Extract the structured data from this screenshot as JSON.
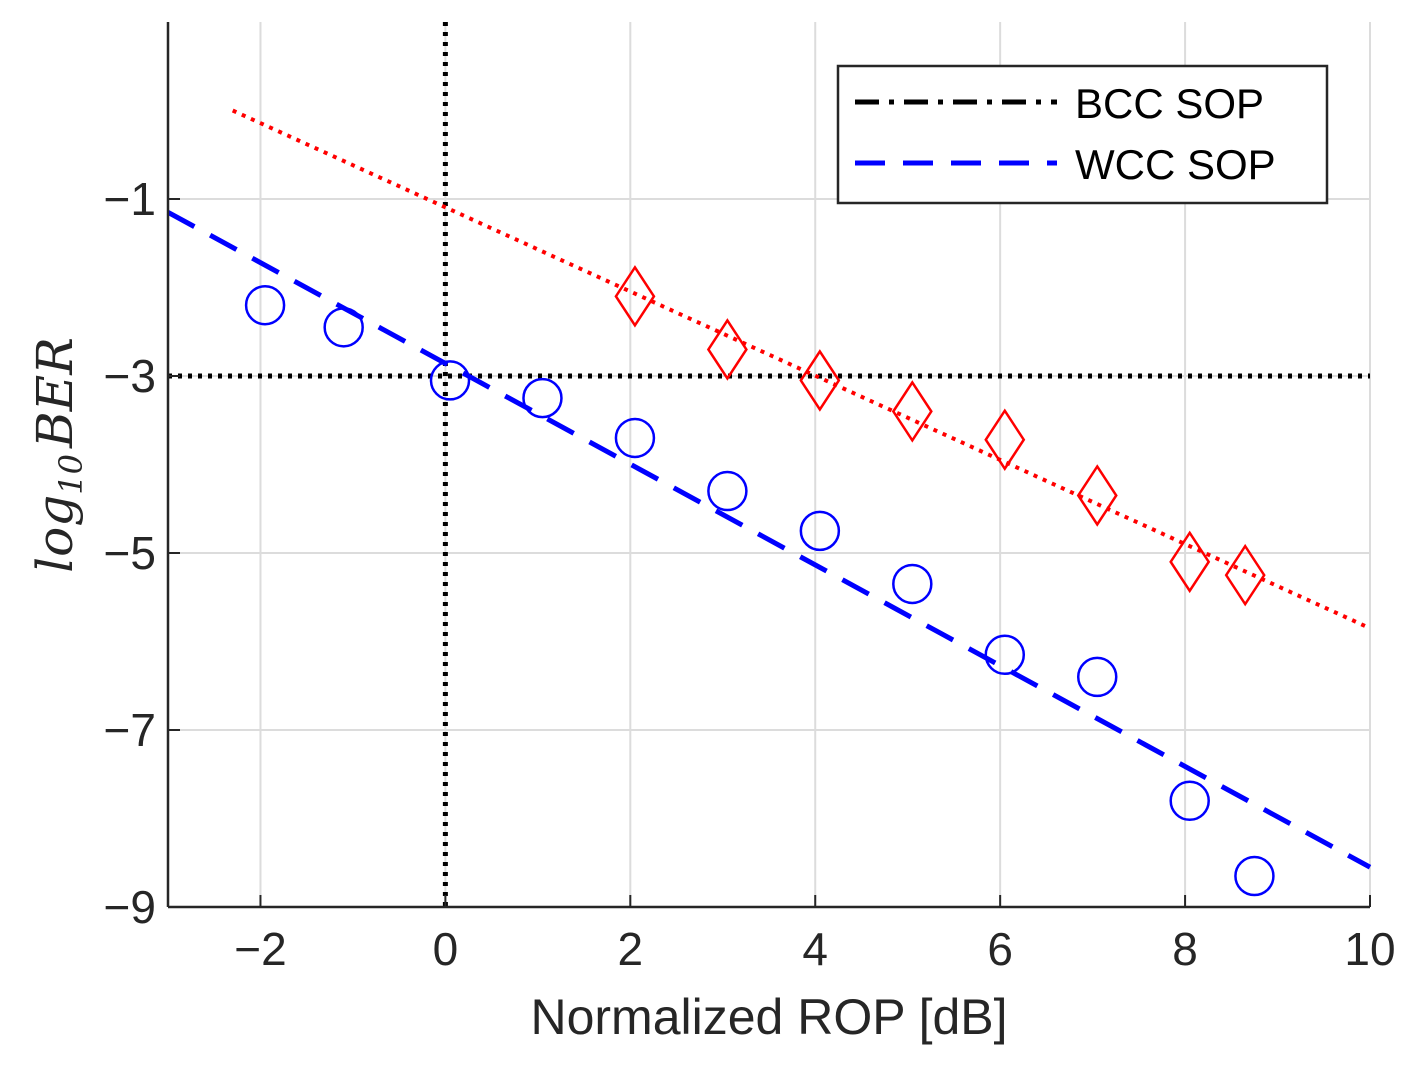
{
  "chart_data": {
    "type": "line",
    "xlabel": "Normalized ROP [dB]",
    "ylabel": {
      "base": "log",
      "subscript": "10",
      "rest": "BER"
    },
    "xlim": [
      -3,
      10
    ],
    "ylim": [
      -9,
      1
    ],
    "xticks": [
      -2,
      0,
      2,
      4,
      6,
      8,
      10
    ],
    "xtick_labels": [
      "−2",
      "0",
      "2",
      "4",
      "6",
      "8",
      "10"
    ],
    "yticks": [
      -1,
      -3,
      -5,
      -7,
      -9
    ],
    "ytick_labels": [
      "−1",
      "−3",
      "−5",
      "−7",
      "−9"
    ],
    "grid": true,
    "legend": {
      "location": "top-right",
      "entries": [
        {
          "label": "BCC SOP",
          "color": "#000000",
          "style": "dash-dot"
        },
        {
          "label": "WCC SOP",
          "color": "#0000ff",
          "style": "dashed"
        }
      ]
    },
    "series": [
      {
        "name": "BCC SOP",
        "kind": "markers",
        "marker": "diamond",
        "color": "#ff0000",
        "x": [
          2.05,
          3.05,
          4.05,
          5.05,
          6.05,
          7.05,
          8.05,
          8.65
        ],
        "y": [
          -2.1,
          -2.7,
          -3.05,
          -3.4,
          -3.72,
          -4.35,
          -5.1,
          -5.25
        ]
      },
      {
        "name": "BCC SOP fit",
        "kind": "line",
        "style": "dotted",
        "color": "#ff0000",
        "x": [
          -2.3,
          10
        ],
        "y": [
          0.0,
          -5.85
        ]
      },
      {
        "name": "WCC SOP",
        "kind": "markers",
        "marker": "circle",
        "color": "#0000ff",
        "x": [
          -1.95,
          -1.1,
          0.05,
          1.05,
          2.05,
          3.05,
          4.05,
          5.05,
          6.05,
          7.05,
          8.05,
          8.75
        ],
        "y": [
          -2.2,
          -2.45,
          -3.05,
          -3.25,
          -3.7,
          -4.3,
          -4.75,
          -5.35,
          -6.15,
          -6.4,
          -7.8,
          -8.65
        ]
      },
      {
        "name": "WCC SOP fit",
        "kind": "line",
        "style": "dashed",
        "color": "#0000ff",
        "x": [
          -3,
          10
        ],
        "y": [
          -1.15,
          -8.55
        ]
      }
    ],
    "reference_lines": [
      {
        "orientation": "horizontal",
        "value": -3,
        "color": "#000000",
        "style": "dotted"
      },
      {
        "orientation": "vertical",
        "value": 0,
        "color": "#000000",
        "style": "dotted"
      }
    ]
  }
}
